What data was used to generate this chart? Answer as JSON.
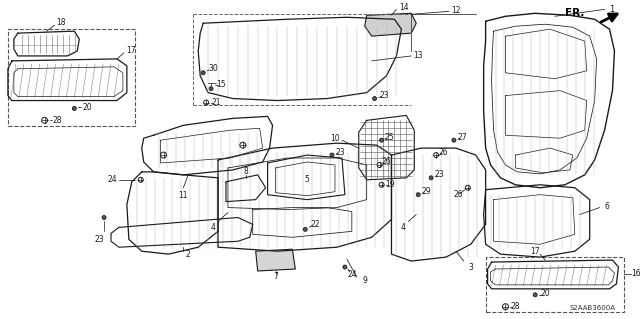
{
  "background_color": "#ffffff",
  "diagram_code": "S2AAB3600A",
  "line_color": "#1a1a1a",
  "label_color": "#1a1a1a",
  "fig_width": 6.4,
  "fig_height": 3.19,
  "dpi": 100,
  "gray_fill": "#c8c8c8",
  "light_gray": "#e8e8e8"
}
